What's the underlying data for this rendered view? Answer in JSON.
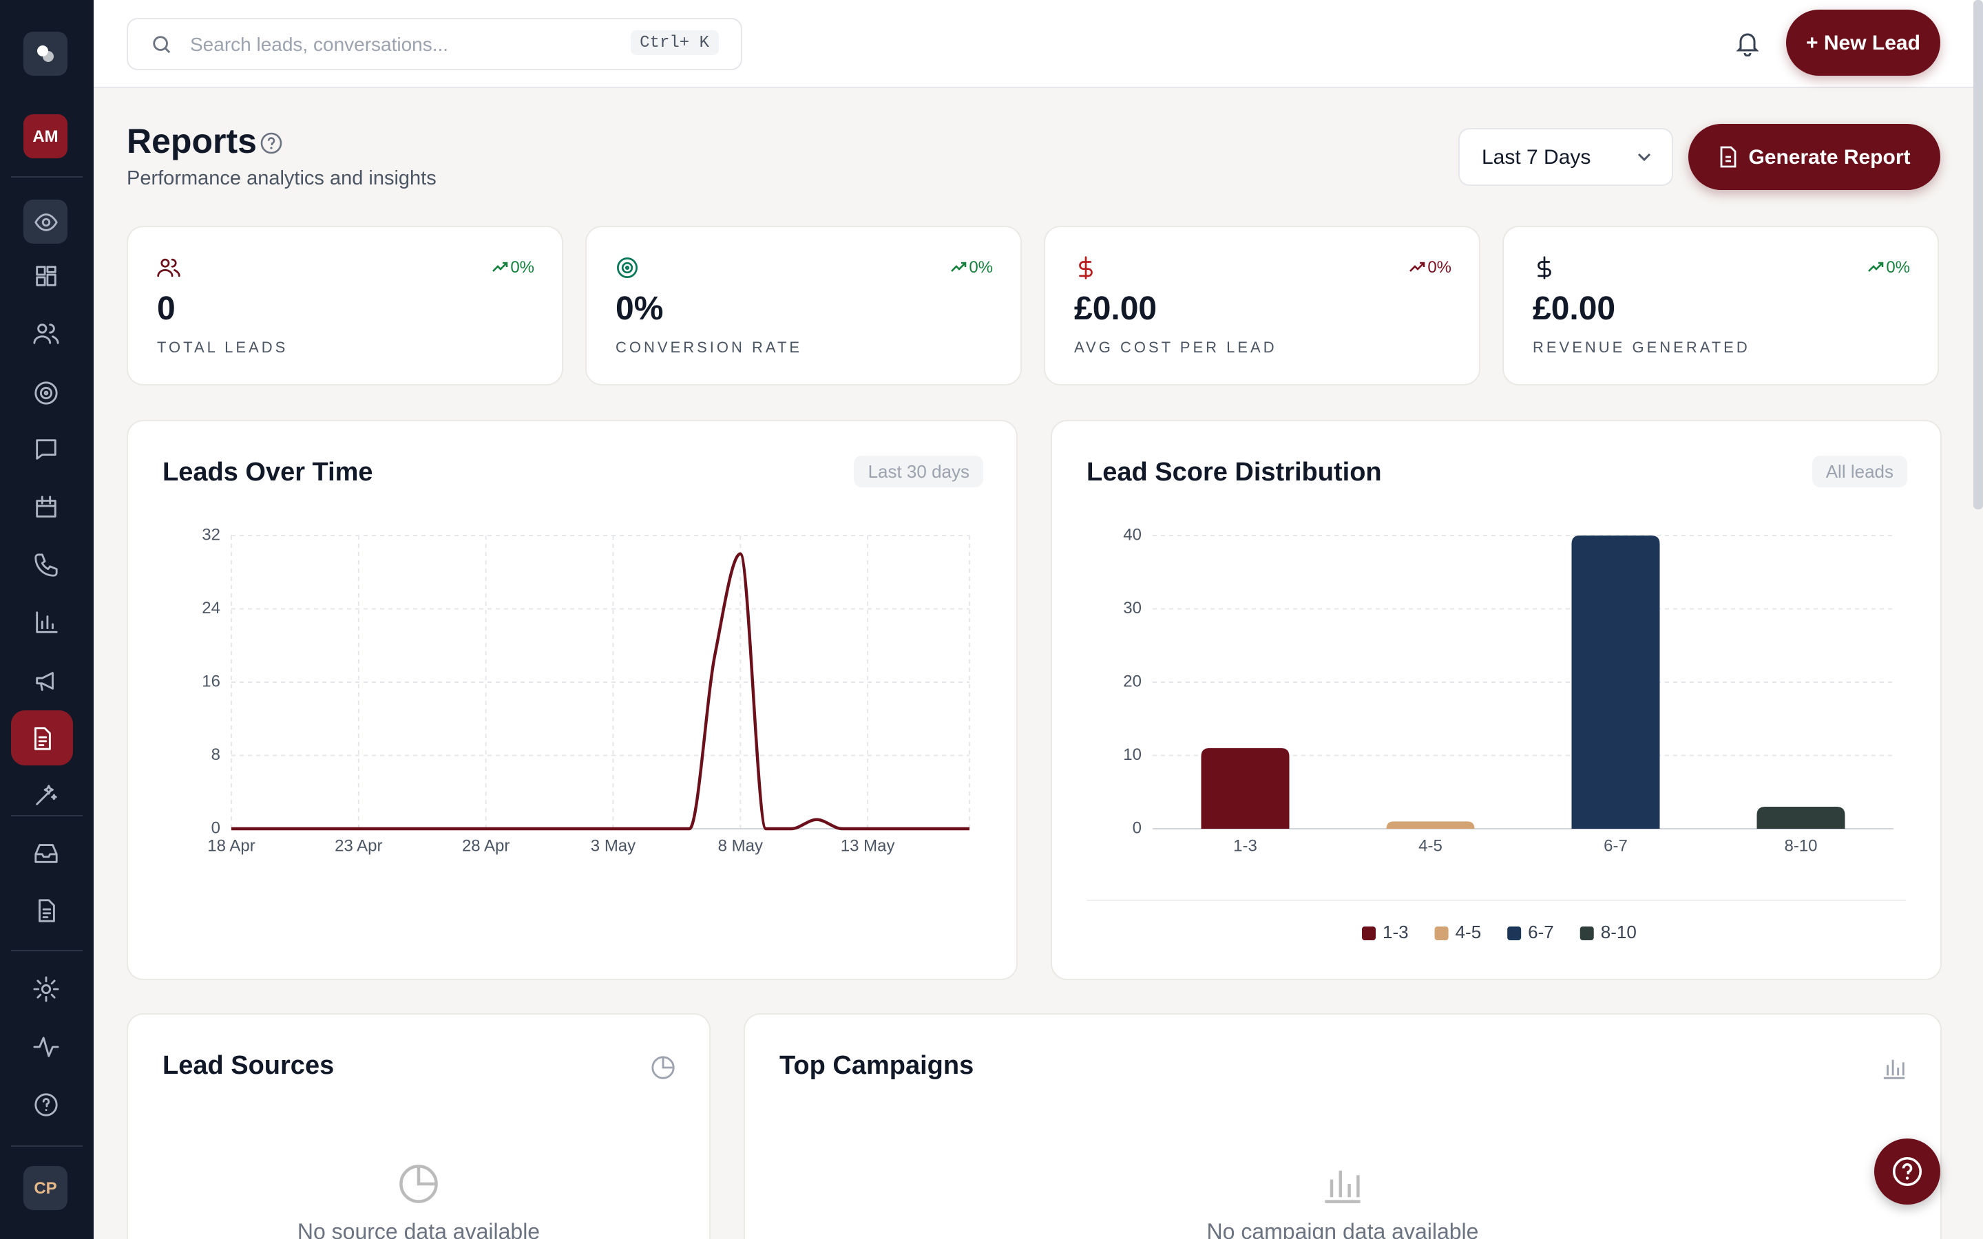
{
  "sidebar": {
    "user_initials": "AM",
    "footer_initials": "CP"
  },
  "search": {
    "placeholder": "Search leads, conversations...",
    "shortcut": "Ctrl+ K"
  },
  "header": {
    "new_lead": "+ New Lead"
  },
  "page": {
    "title": "Reports",
    "subtitle": "Performance analytics and insights",
    "date_range": "Last 7 Days",
    "generate": "Generate Report"
  },
  "stats": [
    {
      "value": "0",
      "label": "TOTAL LEADS",
      "change": "0%",
      "color": "#15803d"
    },
    {
      "value": "0%",
      "label": "CONVERSION RATE",
      "change": "0%",
      "color": "#15803d"
    },
    {
      "value": "£0.00",
      "label": "AVG COST PER LEAD",
      "change": "0%",
      "color": "#7a1020"
    },
    {
      "value": "£0.00",
      "label": "REVENUE GENERATED",
      "change": "0%",
      "color": "#15803d"
    }
  ],
  "chart_data": [
    {
      "type": "line",
      "title": "Leads Over Time",
      "badge": "Last 30 days",
      "categories": [
        "18 Apr",
        null,
        null,
        null,
        null,
        "23 Apr",
        null,
        null,
        null,
        null,
        "28 Apr",
        null,
        null,
        null,
        null,
        "3 May",
        null,
        null,
        null,
        null,
        "8 May",
        null,
        null,
        null,
        null,
        "13 May",
        null,
        null,
        null,
        null
      ],
      "values": [
        0,
        0,
        0,
        0,
        0,
        0,
        0,
        0,
        0,
        0,
        0,
        0,
        0,
        0,
        0,
        0,
        0,
        0,
        0,
        19,
        30,
        0,
        0,
        1,
        0,
        0,
        0,
        0,
        0,
        0
      ],
      "color": "#6b0f1a",
      "ylim": [
        0,
        32
      ],
      "yticks": [
        0,
        8,
        16,
        24,
        32
      ],
      "grid": true
    },
    {
      "type": "bar",
      "title": "Lead Score Distribution",
      "badge": "All leads",
      "categories": [
        "1-3",
        "4-5",
        "6-7",
        "8-10"
      ],
      "values": [
        11,
        1,
        40,
        3
      ],
      "colors": [
        "#6b0f1a",
        "#d4a373",
        "#1d3557",
        "#2f3e3a"
      ],
      "ylim": [
        0,
        40
      ],
      "yticks": [
        0,
        10,
        20,
        30,
        40
      ],
      "grid": true,
      "legend": "bottom"
    }
  ],
  "lead_sources": {
    "title": "Lead Sources",
    "empty": "No source data available"
  },
  "top_campaigns": {
    "title": "Top Campaigns",
    "empty": "No campaign data available"
  }
}
